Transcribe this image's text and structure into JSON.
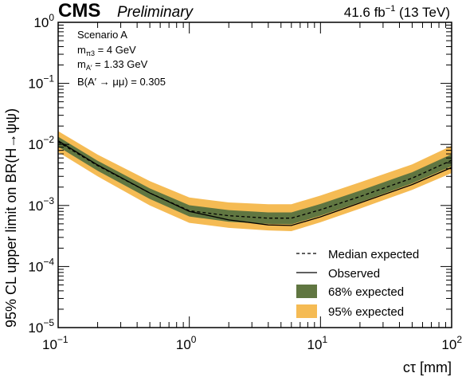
{
  "chart_data": {
    "type": "line",
    "header": {
      "experiment": "CMS",
      "status": "Preliminary",
      "luminosity": "41.6 fb",
      "luminosity_exp": "−1",
      "energy": "(13 TeV)"
    },
    "xlabel": "cτ [mm]",
    "ylabel": "95% CL upper limit on BR(H→ψψ)",
    "xscale": "log",
    "yscale": "log",
    "xlim": [
      0.1,
      100
    ],
    "ylim": [
      1e-05,
      1
    ],
    "x_tick_labels": [
      {
        "base": "10",
        "exp": "−1"
      },
      {
        "base": "10",
        "exp": "0"
      },
      {
        "base": "10",
        "exp": "1"
      },
      {
        "base": "10",
        "exp": "2"
      }
    ],
    "y_tick_labels": [
      {
        "base": "10",
        "exp": "−5"
      },
      {
        "base": "10",
        "exp": "−4"
      },
      {
        "base": "10",
        "exp": "−3"
      },
      {
        "base": "10",
        "exp": "−2"
      },
      {
        "base": "10",
        "exp": "−1"
      },
      {
        "base": "10",
        "exp": "0"
      }
    ],
    "annotations": {
      "scenario": "Scenario A",
      "mpi_label": "m",
      "mpi_sub": "π3",
      "mpi_value": " = 4 GeV",
      "ma_label": "m",
      "ma_sub": "A′",
      "ma_value": " = 1.33 GeV",
      "br_text": "B(A′ → μμ) = 0.305"
    },
    "x": [
      0.1,
      0.2,
      0.5,
      1,
      2,
      4,
      6,
      10,
      20,
      50,
      100
    ],
    "series": [
      {
        "name": "Median expected",
        "style": "dashed",
        "color": "#000000",
        "values": [
          0.011,
          0.0045,
          0.0016,
          0.00082,
          0.00068,
          0.00062,
          0.00062,
          0.00085,
          0.0014,
          0.0028,
          0.0055
        ]
      },
      {
        "name": "Observed",
        "style": "solid",
        "color": "#000000",
        "values": [
          0.0115,
          0.0046,
          0.0016,
          0.0008,
          0.00058,
          0.00048,
          0.00047,
          0.00065,
          0.0011,
          0.0022,
          0.0042
        ]
      }
    ],
    "bands": [
      {
        "name": "95% expected",
        "color": "#f5bb54",
        "lower": [
          0.0075,
          0.003,
          0.001,
          0.00052,
          0.00043,
          0.00039,
          0.00038,
          0.00053,
          0.00089,
          0.0018,
          0.0034
        ],
        "upper": [
          0.0165,
          0.0068,
          0.0025,
          0.00135,
          0.00112,
          0.00105,
          0.00105,
          0.00145,
          0.0024,
          0.0047,
          0.0095
        ]
      },
      {
        "name": "68% expected",
        "color": "#607641",
        "lower": [
          0.0092,
          0.0037,
          0.00128,
          0.00066,
          0.00054,
          0.0005,
          0.00049,
          0.00068,
          0.00113,
          0.0023,
          0.0044
        ],
        "upper": [
          0.0134,
          0.0054,
          0.0019,
          0.00101,
          0.00084,
          0.00077,
          0.00077,
          0.00106,
          0.00175,
          0.0035,
          0.0069
        ]
      }
    ],
    "legend_order": [
      "Median expected",
      "Observed",
      "68% expected",
      "95% expected"
    ],
    "legend_position": "bottom-right"
  }
}
